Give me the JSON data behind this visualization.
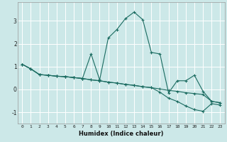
{
  "xlabel": "Humidex (Indice chaleur)",
  "ylabel": "",
  "bg_color": "#cce8e8",
  "grid_color": "#ffffff",
  "line_color": "#1a6b60",
  "xlim": [
    -0.5,
    23.5
  ],
  "ylim": [
    -1.5,
    3.8
  ],
  "xticks": [
    0,
    1,
    2,
    3,
    4,
    5,
    6,
    7,
    8,
    9,
    10,
    11,
    12,
    13,
    14,
    15,
    16,
    17,
    18,
    19,
    20,
    21,
    22,
    23
  ],
  "yticks": [
    -1,
    0,
    1,
    2,
    3
  ],
  "line1_x": [
    0,
    1,
    2,
    3,
    4,
    5,
    6,
    7,
    8,
    9,
    10,
    11,
    12,
    13,
    14,
    15,
    16,
    17,
    18,
    19,
    20,
    21,
    22,
    23
  ],
  "line1_y": [
    1.1,
    0.9,
    0.65,
    0.62,
    0.58,
    0.56,
    0.52,
    0.48,
    1.55,
    0.42,
    2.25,
    2.62,
    3.1,
    3.38,
    3.05,
    1.62,
    1.55,
    -0.15,
    0.38,
    0.38,
    0.62,
    -0.08,
    -0.52,
    -0.58
  ],
  "line2_x": [
    0,
    1,
    2,
    3,
    4,
    5,
    6,
    7,
    8,
    9,
    10,
    11,
    12,
    13,
    14,
    15,
    16,
    17,
    18,
    19,
    20,
    21,
    22,
    23
  ],
  "line2_y": [
    1.1,
    0.9,
    0.65,
    0.62,
    0.58,
    0.56,
    0.52,
    0.48,
    0.42,
    0.38,
    0.32,
    0.28,
    0.22,
    0.18,
    0.12,
    0.08,
    0.02,
    -0.04,
    -0.08,
    -0.14,
    -0.18,
    -0.22,
    -0.52,
    -0.58
  ],
  "line3_x": [
    0,
    1,
    2,
    3,
    4,
    5,
    6,
    7,
    8,
    9,
    10,
    11,
    12,
    13,
    14,
    15,
    16,
    17,
    18,
    19,
    20,
    21,
    22,
    23
  ],
  "line3_y": [
    1.1,
    0.9,
    0.65,
    0.62,
    0.58,
    0.56,
    0.52,
    0.48,
    0.42,
    0.38,
    0.32,
    0.28,
    0.22,
    0.18,
    0.12,
    0.08,
    -0.12,
    -0.38,
    -0.52,
    -0.72,
    -0.88,
    -0.95,
    -0.62,
    -0.68
  ],
  "markersize": 3,
  "linewidth": 0.8
}
